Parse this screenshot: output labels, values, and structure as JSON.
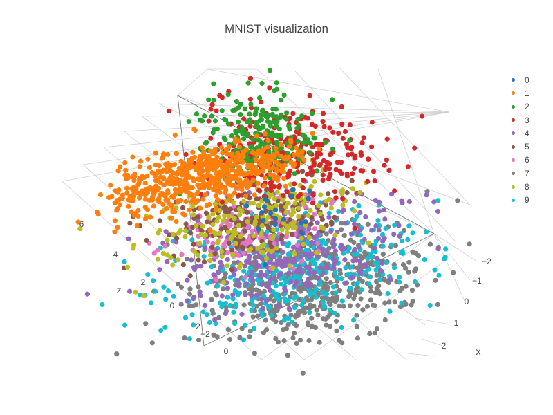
{
  "chart_data": {
    "type": "scatter3d",
    "title": "MNIST visualization",
    "xlabel": "x",
    "ylabel": "",
    "zlabel": "z",
    "x_ticks": [
      "−2",
      "−1",
      "0",
      "1",
      "2"
    ],
    "y_ticks": [
      "−2",
      "0"
    ],
    "z_ticks": [
      "0",
      "2",
      "4",
      "6"
    ],
    "legend_placement": "right",
    "series": [
      {
        "name": "0",
        "color": "#1f77b4"
      },
      {
        "name": "1",
        "color": "#ff7f0e"
      },
      {
        "name": "2",
        "color": "#2ca02c"
      },
      {
        "name": "3",
        "color": "#d62728"
      },
      {
        "name": "4",
        "color": "#9467bd"
      },
      {
        "name": "5",
        "color": "#8c564b"
      },
      {
        "name": "6",
        "color": "#e377c2"
      },
      {
        "name": "7",
        "color": "#7f7f7f"
      },
      {
        "name": "8",
        "color": "#bcbd22"
      },
      {
        "name": "9",
        "color": "#17becf"
      }
    ]
  }
}
